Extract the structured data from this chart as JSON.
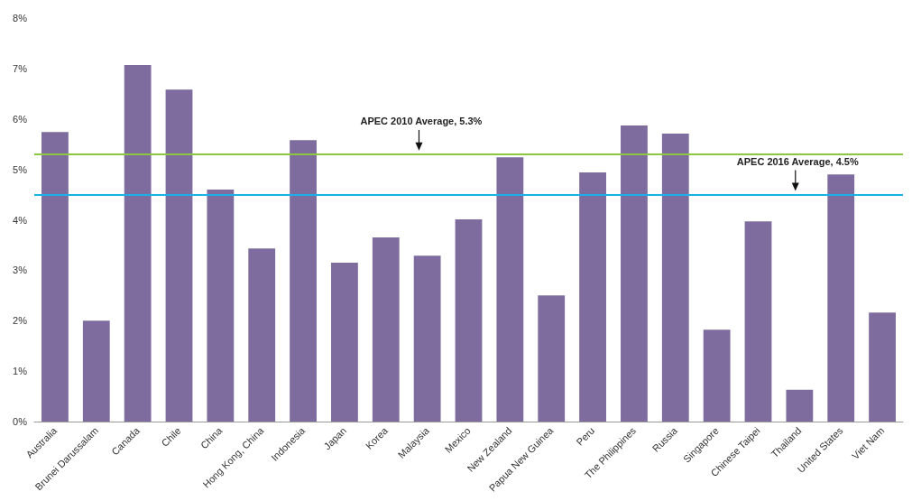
{
  "chart_data": {
    "type": "bar",
    "categories": [
      "Australia",
      "Brunei Darussalam",
      "Canada",
      "Chile",
      "China",
      "Hong Kong, China",
      "Indonesia",
      "Japan",
      "Korea",
      "Malaysia",
      "Mexico",
      "New Zealand",
      "Papua New Guinea",
      "Peru",
      "The Philippines",
      "Russia",
      "Singapore",
      "Chinese Taipei",
      "Thailand",
      "United States",
      "Viet Nam"
    ],
    "series": [
      {
        "color": "#7e6c9f",
        "values": [
          5.74,
          2.0,
          7.07,
          6.58,
          4.6,
          3.43,
          5.58,
          3.15,
          3.65,
          3.29,
          4.01,
          5.24,
          2.5,
          4.94,
          5.87,
          5.71,
          1.82,
          3.97,
          0.63,
          4.9,
          2.16
        ]
      }
    ],
    "ylim": [
      0,
      8
    ],
    "yticks": [
      {
        "value": 0,
        "label": "0%"
      },
      {
        "value": 1,
        "label": "1%"
      },
      {
        "value": 2,
        "label": "2%"
      },
      {
        "value": 3,
        "label": "3%"
      },
      {
        "value": 4,
        "label": "4%"
      },
      {
        "value": 5,
        "label": "5%"
      },
      {
        "value": 6,
        "label": "6%"
      },
      {
        "value": 7,
        "label": "7%"
      },
      {
        "value": 8,
        "label": "8%"
      }
    ],
    "grid": false,
    "ref_lines": [
      {
        "axis": "y",
        "value": 5.3,
        "label": "APEC 2010 Average, 5.3%",
        "color": "#8dc63f",
        "line_style": "solid"
      },
      {
        "axis": "y",
        "value": 4.5,
        "label": "APEC 2016 Average, 4.5%",
        "color": "#1ab0e8",
        "line_style": "solid"
      }
    ]
  }
}
